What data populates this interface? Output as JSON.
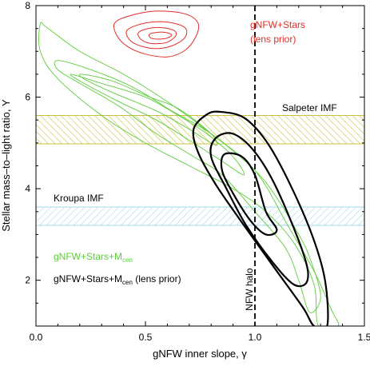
{
  "chart_data": {
    "type": "contour",
    "xlabel": "gNFW inner slope, γ",
    "ylabel": "Stellar mass–to–light ratio, Υ",
    "xlim": [
      0.0,
      1.5
    ],
    "ylim": [
      1.0,
      8.0
    ],
    "xticks": [
      0.0,
      0.5,
      1.0,
      1.5
    ],
    "xtick_labels": [
      "0.0",
      "0.5",
      "1.0",
      "1.5"
    ],
    "yticks": [
      2,
      4,
      6,
      8
    ],
    "ytick_labels": [
      "2",
      "4",
      "6",
      "8"
    ],
    "bands": [
      {
        "name": "Salpeter IMF",
        "y_range": [
          4.98,
          5.6
        ],
        "color": "#c8c040"
      },
      {
        "name": "Kroupa IMF",
        "y_range": [
          3.2,
          3.6
        ],
        "color": "#a6d8ea"
      }
    ],
    "vline": {
      "x": 1.0,
      "label": "NFW halo"
    },
    "legend_red": [
      "gNFW+Stars",
      "(lens prior)"
    ],
    "legend_green": {
      "text": "gNFW+Stars+M",
      "sub": "cen"
    },
    "legend_black": {
      "text": "gNFW+Stars+M",
      "sub": "cen",
      "suffix": " (lens prior)"
    },
    "series": [
      {
        "name": "gNFW+Stars (lens prior)",
        "color": "#e0302a",
        "contours": [
          [
            [
              0.36,
              7.62
            ],
            [
              0.43,
              7.78
            ],
            [
              0.55,
              7.88
            ],
            [
              0.68,
              7.82
            ],
            [
              0.74,
              7.62
            ],
            [
              0.73,
              7.32
            ],
            [
              0.68,
              7.02
            ],
            [
              0.6,
              6.88
            ],
            [
              0.5,
              6.94
            ],
            [
              0.42,
              7.1
            ],
            [
              0.37,
              7.34
            ]
          ],
          [
            [
              0.42,
              7.48
            ],
            [
              0.5,
              7.62
            ],
            [
              0.6,
              7.64
            ],
            [
              0.68,
              7.52
            ],
            [
              0.68,
              7.3
            ],
            [
              0.62,
              7.12
            ],
            [
              0.54,
              7.06
            ],
            [
              0.46,
              7.15
            ],
            [
              0.42,
              7.3
            ]
          ],
          [
            [
              0.47,
              7.42
            ],
            [
              0.54,
              7.52
            ],
            [
              0.62,
              7.48
            ],
            [
              0.64,
              7.36
            ],
            [
              0.6,
              7.2
            ],
            [
              0.53,
              7.17
            ],
            [
              0.48,
              7.26
            ]
          ],
          [
            [
              0.52,
              7.38
            ],
            [
              0.58,
              7.42
            ],
            [
              0.62,
              7.36
            ],
            [
              0.59,
              7.28
            ],
            [
              0.53,
              7.28
            ]
          ]
        ]
      },
      {
        "name": "gNFW+Stars+Mcen",
        "color": "#5ccc3a",
        "contours": [
          [
            [
              0.02,
              7.6
            ],
            [
              0.05,
              7.52
            ],
            [
              0.2,
              7.0
            ],
            [
              0.4,
              6.5
            ],
            [
              0.6,
              5.9
            ],
            [
              0.8,
              5.2
            ],
            [
              1.0,
              4.4
            ],
            [
              1.15,
              3.2
            ],
            [
              1.27,
              2.2
            ],
            [
              1.35,
              1.35
            ],
            [
              1.38,
              1.0
            ],
            [
              1.29,
              1.0
            ],
            [
              1.27,
              1.9
            ],
            [
              1.18,
              2.8
            ],
            [
              1.05,
              3.5
            ],
            [
              0.9,
              4.0
            ],
            [
              0.7,
              4.5
            ],
            [
              0.5,
              5.0
            ],
            [
              0.3,
              5.6
            ],
            [
              0.1,
              6.4
            ],
            [
              0.02,
              7.0
            ]
          ],
          [
            [
              0.1,
              6.8
            ],
            [
              0.25,
              6.6
            ],
            [
              0.45,
              6.2
            ],
            [
              0.62,
              5.7
            ],
            [
              0.8,
              5.2
            ],
            [
              1.0,
              4.4
            ],
            [
              1.1,
              3.8
            ],
            [
              1.2,
              3.0
            ],
            [
              1.25,
              2.5
            ],
            [
              1.3,
              1.65
            ],
            [
              1.25,
              1.3
            ],
            [
              1.2,
              2.0
            ],
            [
              1.14,
              2.7
            ],
            [
              1.0,
              3.5
            ],
            [
              0.85,
              4.3
            ],
            [
              0.72,
              4.7
            ],
            [
              0.55,
              5.2
            ],
            [
              0.38,
              5.8
            ],
            [
              0.2,
              6.3
            ],
            [
              0.1,
              6.6
            ]
          ],
          [
            [
              0.16,
              6.5
            ],
            [
              0.3,
              6.3
            ],
            [
              0.5,
              6.0
            ],
            [
              0.65,
              5.6
            ],
            [
              0.78,
              5.2
            ],
            [
              0.9,
              4.7
            ],
            [
              0.95,
              4.3
            ],
            [
              0.85,
              4.6
            ],
            [
              0.72,
              5.0
            ],
            [
              0.55,
              5.5
            ],
            [
              0.38,
              5.9
            ],
            [
              0.22,
              6.3
            ]
          ],
          [
            [
              0.21,
              6.5
            ],
            [
              0.35,
              6.35
            ],
            [
              0.52,
              6.0
            ],
            [
              0.65,
              5.75
            ],
            [
              0.8,
              5.2
            ],
            [
              0.82,
              4.95
            ],
            [
              0.7,
              5.3
            ],
            [
              0.55,
              5.7
            ],
            [
              0.35,
              6.1
            ],
            [
              0.22,
              6.4
            ]
          ]
        ]
      },
      {
        "name": "gNFW+Stars+Mcen (lens prior)",
        "color": "#000000",
        "contours": [
          [
            [
              0.78,
              5.62
            ],
            [
              0.84,
              5.68
            ],
            [
              0.95,
              5.55
            ],
            [
              1.05,
              5.05
            ],
            [
              1.15,
              4.2
            ],
            [
              1.26,
              3.0
            ],
            [
              1.32,
              2.0
            ],
            [
              1.33,
              1.0
            ],
            [
              1.27,
              1.0
            ],
            [
              1.22,
              1.4
            ],
            [
              1.1,
              2.2
            ],
            [
              0.95,
              3.2
            ],
            [
              0.82,
              4.1
            ],
            [
              0.74,
              4.8
            ],
            [
              0.72,
              5.3
            ]
          ],
          [
            [
              0.82,
              5.1
            ],
            [
              0.9,
              5.2
            ],
            [
              1.0,
              4.8
            ],
            [
              1.1,
              4.0
            ],
            [
              1.22,
              2.6
            ],
            [
              1.24,
              2.0
            ],
            [
              1.18,
              1.9
            ],
            [
              1.08,
              2.4
            ],
            [
              0.96,
              3.2
            ],
            [
              0.87,
              4.0
            ],
            [
              0.8,
              4.7
            ]
          ],
          [
            [
              0.86,
              4.75
            ],
            [
              0.94,
              4.7
            ],
            [
              1.0,
              4.3
            ],
            [
              1.05,
              3.5
            ],
            [
              1.1,
              3.1
            ],
            [
              1.05,
              3.0
            ],
            [
              0.98,
              3.3
            ],
            [
              0.9,
              3.9
            ],
            [
              0.85,
              4.4
            ]
          ]
        ]
      }
    ]
  }
}
